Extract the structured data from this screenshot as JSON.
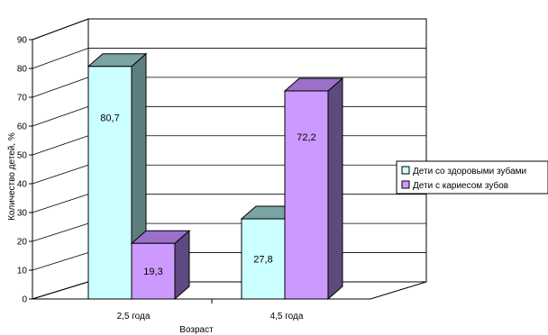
{
  "chart_data": {
    "type": "bar",
    "categories": [
      "2,5 года",
      "4,5 года"
    ],
    "series": [
      {
        "name": "Дети со здоровыми зубами",
        "values": [
          80.7,
          27.8
        ],
        "labels": [
          "80,7",
          "27,8"
        ],
        "color": "#ccffff"
      },
      {
        "name": "Дети с кариесом зубов",
        "values": [
          19.3,
          72.2
        ],
        "labels": [
          "19,3",
          "72,2"
        ],
        "color": "#cc99ff"
      }
    ],
    "title": "",
    "xlabel": "Возраст",
    "ylabel": "Количество детей, %",
    "ylim": [
      0,
      90
    ],
    "yticks": [
      "0",
      "10",
      "20",
      "30",
      "40",
      "50",
      "60",
      "70",
      "80",
      "90"
    ],
    "grid": true,
    "legend_position": "right",
    "style": "3d-clustered-column"
  }
}
